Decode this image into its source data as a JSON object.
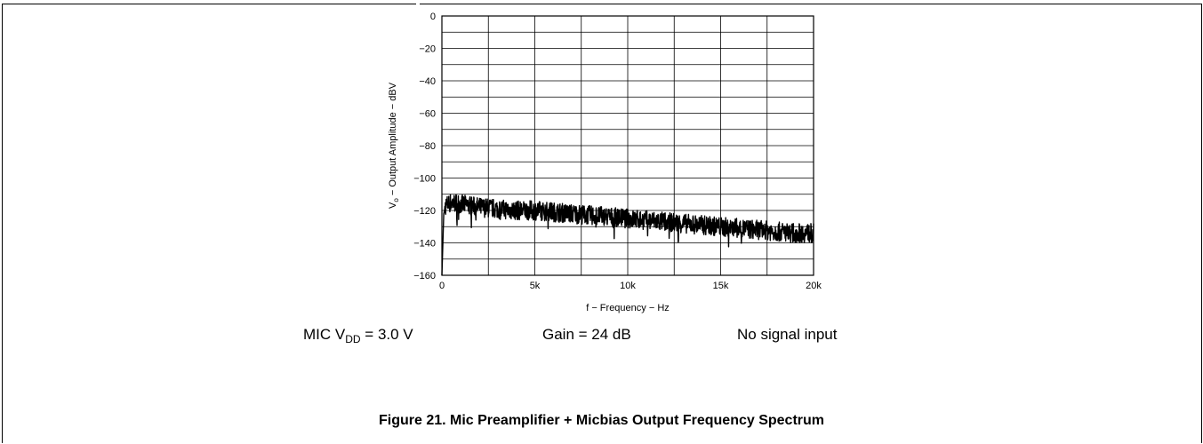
{
  "chart_data": {
    "type": "line",
    "title": "",
    "xlabel": "f − Frequency − Hz",
    "ylabel_main": "V",
    "ylabel_sub": "o",
    "ylabel_rest": " − Output Amplitude − dBV",
    "xlim": [
      0,
      20000
    ],
    "ylim": [
      -160,
      0
    ],
    "x_ticks": [
      0,
      5000,
      10000,
      15000,
      20000
    ],
    "x_tick_labels": [
      "0",
      "5k",
      "10k",
      "15k",
      "20k"
    ],
    "y_ticks": [
      0,
      -20,
      -40,
      -60,
      -80,
      -100,
      -120,
      -140,
      -160
    ],
    "y_tick_labels": [
      "0",
      "−20",
      "−40",
      "−60",
      "−80",
      "−100",
      "−120",
      "−140",
      "−160"
    ],
    "grid": true,
    "series": [
      {
        "color": "#000000",
        "x": [
          0,
          100,
          200,
          500,
          1000,
          2000,
          3000,
          4000,
          5000,
          6000,
          7000,
          8000,
          9000,
          10000,
          11000,
          12000,
          13000,
          14000,
          15000,
          16000,
          17000,
          18000,
          19000,
          20000
        ],
        "y": [
          -160,
          -122,
          -117,
          -115,
          -116,
          -118,
          -119,
          -120,
          -120,
          -121,
          -122,
          -123,
          -124,
          -125,
          -126,
          -127,
          -128,
          -129,
          -130,
          -131,
          -132,
          -133,
          -134,
          -134
        ],
        "noise_band_db": [
          -6,
          6
        ]
      }
    ]
  },
  "conditions": {
    "mic_prefix": "MIC V",
    "mic_sub": "DD",
    "mic_suffix": " = 3.0 V",
    "gain": "Gain = 24 dB",
    "signal": "No signal input"
  },
  "caption": "Figure 21. Mic Preamplifier + Micbias Output Frequency Spectrum"
}
